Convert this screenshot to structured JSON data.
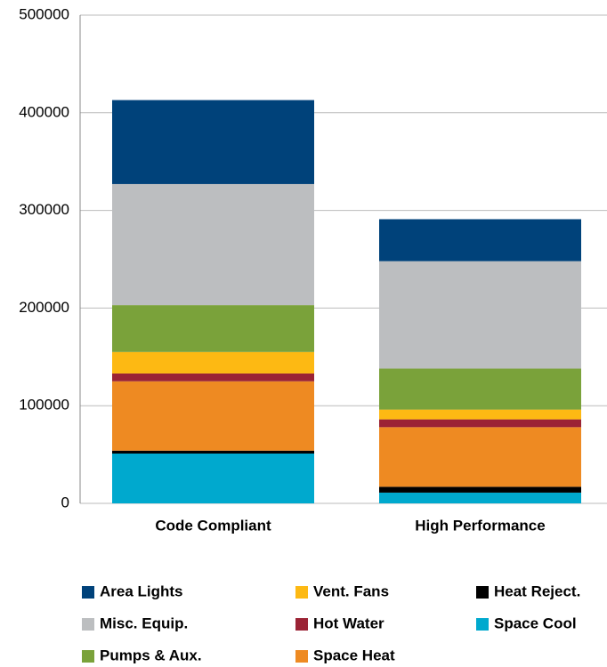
{
  "chart_data": {
    "type": "stacked_bar",
    "categories": [
      "Code Compliant",
      "High Performance"
    ],
    "series": [
      {
        "name": "Space Cool",
        "color": "#00a9ce",
        "values": [
          51000,
          11000
        ]
      },
      {
        "name": "Heat Reject.",
        "color": "#000000",
        "values": [
          3000,
          6000
        ]
      },
      {
        "name": "Space Heat",
        "color": "#ee8a22",
        "values": [
          71000,
          61000
        ]
      },
      {
        "name": "Hot Water",
        "color": "#9b2335",
        "values": [
          8000,
          8000
        ]
      },
      {
        "name": "Vent. Fans",
        "color": "#fdb913",
        "values": [
          22000,
          10000
        ]
      },
      {
        "name": "Pumps & Aux.",
        "color": "#7aa23a",
        "values": [
          48000,
          42000
        ]
      },
      {
        "name": "Misc. Equip.",
        "color": "#bcbec0",
        "values": [
          124000,
          110000
        ]
      },
      {
        "name": "Area Lights",
        "color": "#00427a",
        "values": [
          86000,
          43000
        ]
      }
    ],
    "ylim": [
      0,
      500000
    ],
    "yticks": [
      0,
      100000,
      200000,
      300000,
      400000,
      500000
    ],
    "grid": true
  }
}
